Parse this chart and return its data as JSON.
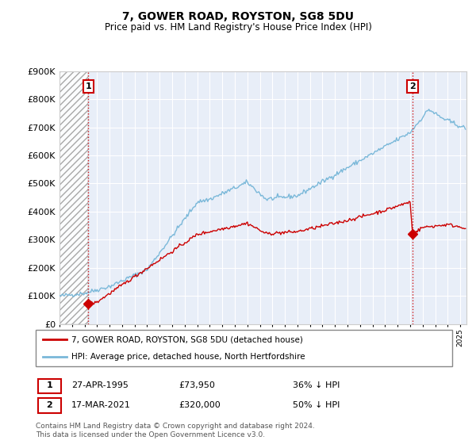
{
  "title": "7, GOWER ROAD, ROYSTON, SG8 5DU",
  "subtitle": "Price paid vs. HM Land Registry's House Price Index (HPI)",
  "ylim": [
    0,
    900000
  ],
  "yticks": [
    0,
    100000,
    200000,
    300000,
    400000,
    500000,
    600000,
    700000,
    800000,
    900000
  ],
  "ytick_labels": [
    "£0",
    "£100K",
    "£200K",
    "£300K",
    "£400K",
    "£500K",
    "£600K",
    "£700K",
    "£800K",
    "£900K"
  ],
  "xlim_start": 1993.0,
  "xlim_end": 2025.5,
  "hpi_color": "#7ab8d9",
  "price_color": "#cc0000",
  "marker1_x": 1995.3,
  "marker1_y": 73950,
  "marker2_x": 2021.2,
  "marker2_y": 320000,
  "sale1_date": "27-APR-1995",
  "sale1_price": "£73,950",
  "sale1_hpi": "36% ↓ HPI",
  "sale2_date": "17-MAR-2021",
  "sale2_price": "£320,000",
  "sale2_hpi": "50% ↓ HPI",
  "legend_line1": "7, GOWER ROAD, ROYSTON, SG8 5DU (detached house)",
  "legend_line2": "HPI: Average price, detached house, North Hertfordshire",
  "footnote": "Contains HM Land Registry data © Crown copyright and database right 2024.\nThis data is licensed under the Open Government Licence v3.0.",
  "hatch_end": 1995.3,
  "background_color": "#ffffff",
  "plot_bg_color": "#e8eef8"
}
